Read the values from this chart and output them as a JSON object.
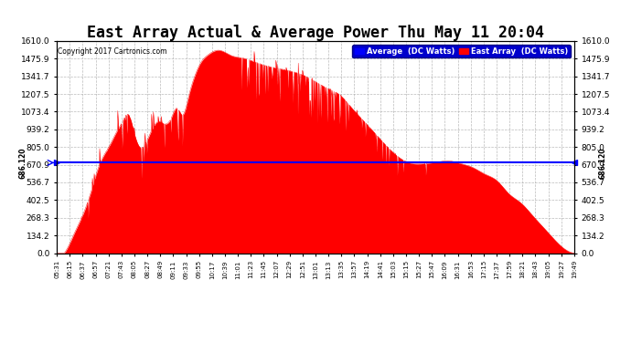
{
  "title": "East Array Actual & Average Power Thu May 11 20:04",
  "copyright": "Copyright 2017 Cartronics.com",
  "average_value": 686.12,
  "average_label": "686.120",
  "ymin": 0.0,
  "ymax": 1610.0,
  "yticks": [
    0.0,
    134.2,
    268.3,
    402.5,
    536.7,
    670.9,
    805.0,
    939.2,
    1073.4,
    1207.5,
    1341.7,
    1475.9,
    1610.0
  ],
  "legend_avg_label": "Average  (DC Watts)",
  "legend_east_label": "East Array  (DC Watts)",
  "avg_color": "#0000FF",
  "east_color": "#FF0000",
  "background_color": "#FFFFFF",
  "grid_color": "#AAAAAA",
  "title_fontsize": 12,
  "xtick_labels": [
    "05:31",
    "06:15",
    "06:37",
    "06:57",
    "07:21",
    "07:43",
    "08:05",
    "08:27",
    "08:49",
    "09:11",
    "09:33",
    "09:55",
    "10:17",
    "10:39",
    "11:01",
    "11:23",
    "11:45",
    "12:07",
    "12:29",
    "12:51",
    "13:01",
    "13:13",
    "13:35",
    "13:57",
    "14:19",
    "14:41",
    "15:03",
    "15:15",
    "15:27",
    "15:47",
    "16:09",
    "16:31",
    "16:53",
    "17:15",
    "17:37",
    "17:59",
    "18:21",
    "18:43",
    "19:05",
    "19:27",
    "19:49"
  ]
}
